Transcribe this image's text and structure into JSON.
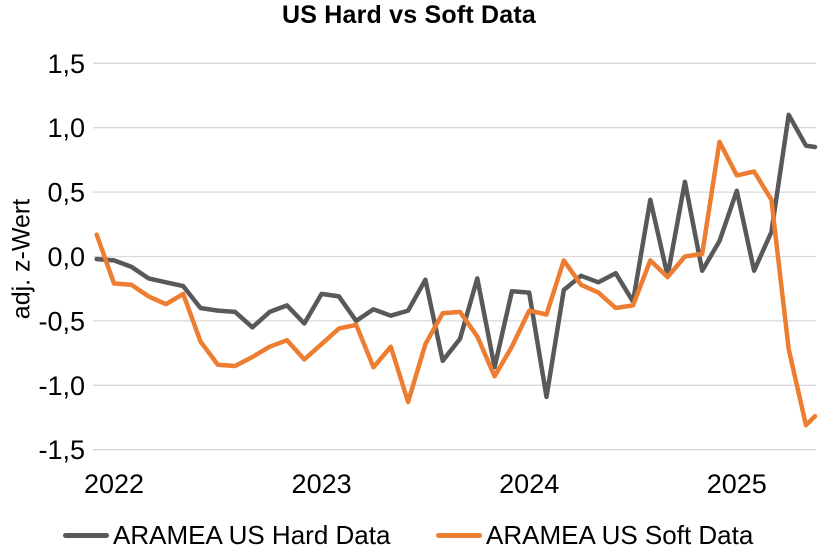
{
  "title": "US Hard vs Soft Data",
  "colors": {
    "hard_series": "#595959",
    "soft_series": "#ED7D31",
    "gridline": "#D9D9D9",
    "text": "#000000",
    "background": "#FFFFFF"
  },
  "y_axis": {
    "title": "adj. z-Wert",
    "ticks": [
      {
        "label": "1,5",
        "value": 1.5
      },
      {
        "label": "1,0",
        "value": 1.0
      },
      {
        "label": "0,5",
        "value": 0.5
      },
      {
        "label": "0,0",
        "value": 0.0
      },
      {
        "label": "-0,5",
        "value": -0.5
      },
      {
        "label": "-1,0",
        "value": -1.0
      },
      {
        "label": "-1,5",
        "value": -1.5
      }
    ]
  },
  "x_axis": {
    "ticks": [
      {
        "label": "2022",
        "month_index": 1
      },
      {
        "label": "2023",
        "month_index": 13
      },
      {
        "label": "2024",
        "month_index": 25
      },
      {
        "label": "2025",
        "month_index": 37
      }
    ]
  },
  "chart_data": {
    "type": "line",
    "title": "US Hard vs Soft Data",
    "xlabel": "",
    "ylabel": "adj. z-Wert",
    "ylim": [
      -1.5,
      1.5
    ],
    "grid": "horizontal",
    "legend_position": "bottom",
    "x": [
      "2021-12",
      "2022-01",
      "2022-02",
      "2022-03",
      "2022-04",
      "2022-05",
      "2022-06",
      "2022-07",
      "2022-08",
      "2022-09",
      "2022-10",
      "2022-11",
      "2022-12",
      "2023-01",
      "2023-02",
      "2023-03",
      "2023-04",
      "2023-05",
      "2023-06",
      "2023-07",
      "2023-08",
      "2023-09",
      "2023-10",
      "2023-11",
      "2023-12",
      "2024-01",
      "2024-02",
      "2024-03",
      "2024-04",
      "2024-05",
      "2024-06",
      "2024-07",
      "2024-08",
      "2024-09",
      "2024-10",
      "2024-11",
      "2024-12",
      "2025-01",
      "2025-02",
      "2025-03",
      "2025-04",
      "2025-05",
      "2025-06"
    ],
    "series": [
      {
        "name": "ARAMEA US Hard Data",
        "color": "#595959",
        "values": [
          -0.02,
          -0.03,
          -0.08,
          -0.17,
          -0.2,
          -0.23,
          -0.4,
          -0.42,
          -0.43,
          -0.55,
          -0.43,
          -0.38,
          -0.52,
          -0.29,
          -0.31,
          -0.5,
          -0.41,
          -0.46,
          -0.42,
          -0.18,
          -0.81,
          -0.64,
          -0.17,
          -0.86,
          -0.27,
          -0.28,
          -1.09,
          -0.26,
          -0.15,
          -0.2,
          -0.13,
          -0.35,
          0.44,
          -0.15,
          0.58,
          -0.11,
          0.12,
          0.51,
          -0.11,
          0.19,
          1.1,
          0.86,
          0.85
        ]
      },
      {
        "name": "ARAMEA US Soft Data",
        "color": "#ED7D31",
        "values": [
          0.17,
          -0.21,
          -0.22,
          -0.31,
          -0.37,
          -0.29,
          -0.66,
          -0.84,
          -0.85,
          -0.78,
          -0.7,
          -0.65,
          -0.8,
          -0.68,
          -0.56,
          -0.53,
          -0.86,
          -0.7,
          -1.13,
          -0.68,
          -0.44,
          -0.43,
          -0.62,
          -0.93,
          -0.7,
          -0.42,
          -0.45,
          -0.03,
          -0.22,
          -0.28,
          -0.4,
          -0.38,
          -0.03,
          -0.16,
          0.0,
          0.02,
          0.89,
          0.63,
          0.66,
          0.44,
          -0.72,
          -1.31,
          -1.24
        ]
      }
    ]
  }
}
